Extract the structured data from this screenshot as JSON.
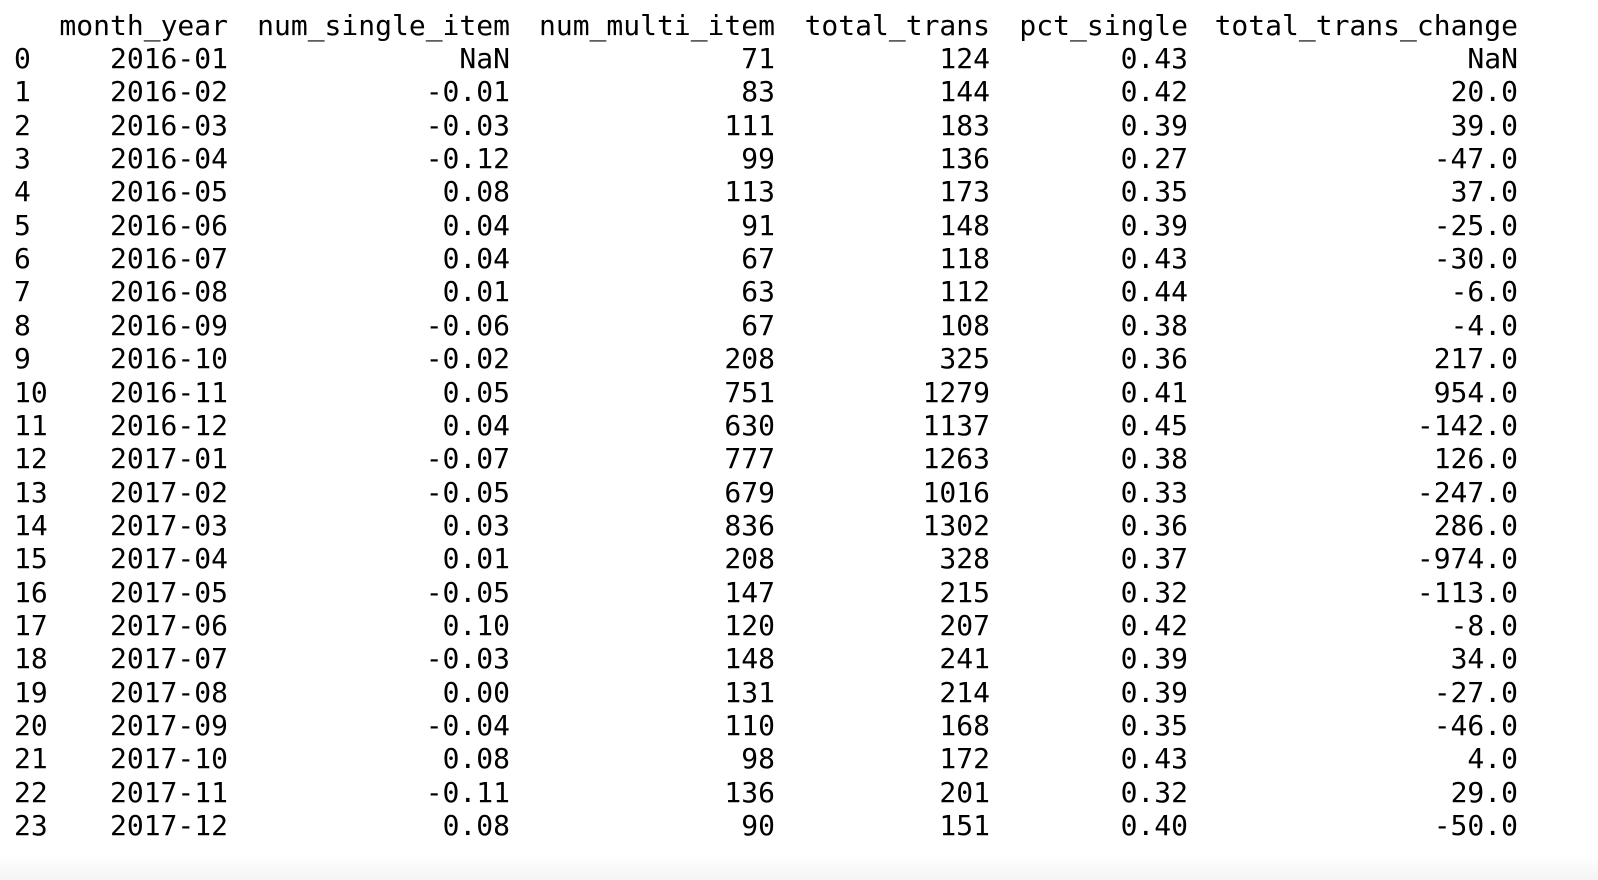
{
  "table": {
    "columns": [
      "month_year",
      "num_single_item",
      "num_multi_item",
      "total_trans",
      "pct_single",
      "total_trans_change"
    ],
    "rows": [
      [
        "0",
        "2016-01",
        "NaN",
        "71",
        "124",
        "0.43",
        "NaN"
      ],
      [
        "1",
        "2016-02",
        "-0.01",
        "83",
        "144",
        "0.42",
        "20.0"
      ],
      [
        "2",
        "2016-03",
        "-0.03",
        "111",
        "183",
        "0.39",
        "39.0"
      ],
      [
        "3",
        "2016-04",
        "-0.12",
        "99",
        "136",
        "0.27",
        "-47.0"
      ],
      [
        "4",
        "2016-05",
        "0.08",
        "113",
        "173",
        "0.35",
        "37.0"
      ],
      [
        "5",
        "2016-06",
        "0.04",
        "91",
        "148",
        "0.39",
        "-25.0"
      ],
      [
        "6",
        "2016-07",
        "0.04",
        "67",
        "118",
        "0.43",
        "-30.0"
      ],
      [
        "7",
        "2016-08",
        "0.01",
        "63",
        "112",
        "0.44",
        "-6.0"
      ],
      [
        "8",
        "2016-09",
        "-0.06",
        "67",
        "108",
        "0.38",
        "-4.0"
      ],
      [
        "9",
        "2016-10",
        "-0.02",
        "208",
        "325",
        "0.36",
        "217.0"
      ],
      [
        "10",
        "2016-11",
        "0.05",
        "751",
        "1279",
        "0.41",
        "954.0"
      ],
      [
        "11",
        "2016-12",
        "0.04",
        "630",
        "1137",
        "0.45",
        "-142.0"
      ],
      [
        "12",
        "2017-01",
        "-0.07",
        "777",
        "1263",
        "0.38",
        "126.0"
      ],
      [
        "13",
        "2017-02",
        "-0.05",
        "679",
        "1016",
        "0.33",
        "-247.0"
      ],
      [
        "14",
        "2017-03",
        "0.03",
        "836",
        "1302",
        "0.36",
        "286.0"
      ],
      [
        "15",
        "2017-04",
        "0.01",
        "208",
        "328",
        "0.37",
        "-974.0"
      ],
      [
        "16",
        "2017-05",
        "-0.05",
        "147",
        "215",
        "0.32",
        "-113.0"
      ],
      [
        "17",
        "2017-06",
        "0.10",
        "120",
        "207",
        "0.42",
        "-8.0"
      ],
      [
        "18",
        "2017-07",
        "-0.03",
        "148",
        "241",
        "0.39",
        "34.0"
      ],
      [
        "19",
        "2017-08",
        "0.00",
        "131",
        "214",
        "0.39",
        "-27.0"
      ],
      [
        "20",
        "2017-09",
        "-0.04",
        "110",
        "168",
        "0.35",
        "-46.0"
      ],
      [
        "21",
        "2017-10",
        "0.08",
        "98",
        "172",
        "0.43",
        "4.0"
      ],
      [
        "22",
        "2017-11",
        "-0.11",
        "136",
        "201",
        "0.32",
        "29.0"
      ],
      [
        "23",
        "2017-12",
        "0.08",
        "90",
        "151",
        "0.40",
        "-50.0"
      ]
    ]
  }
}
